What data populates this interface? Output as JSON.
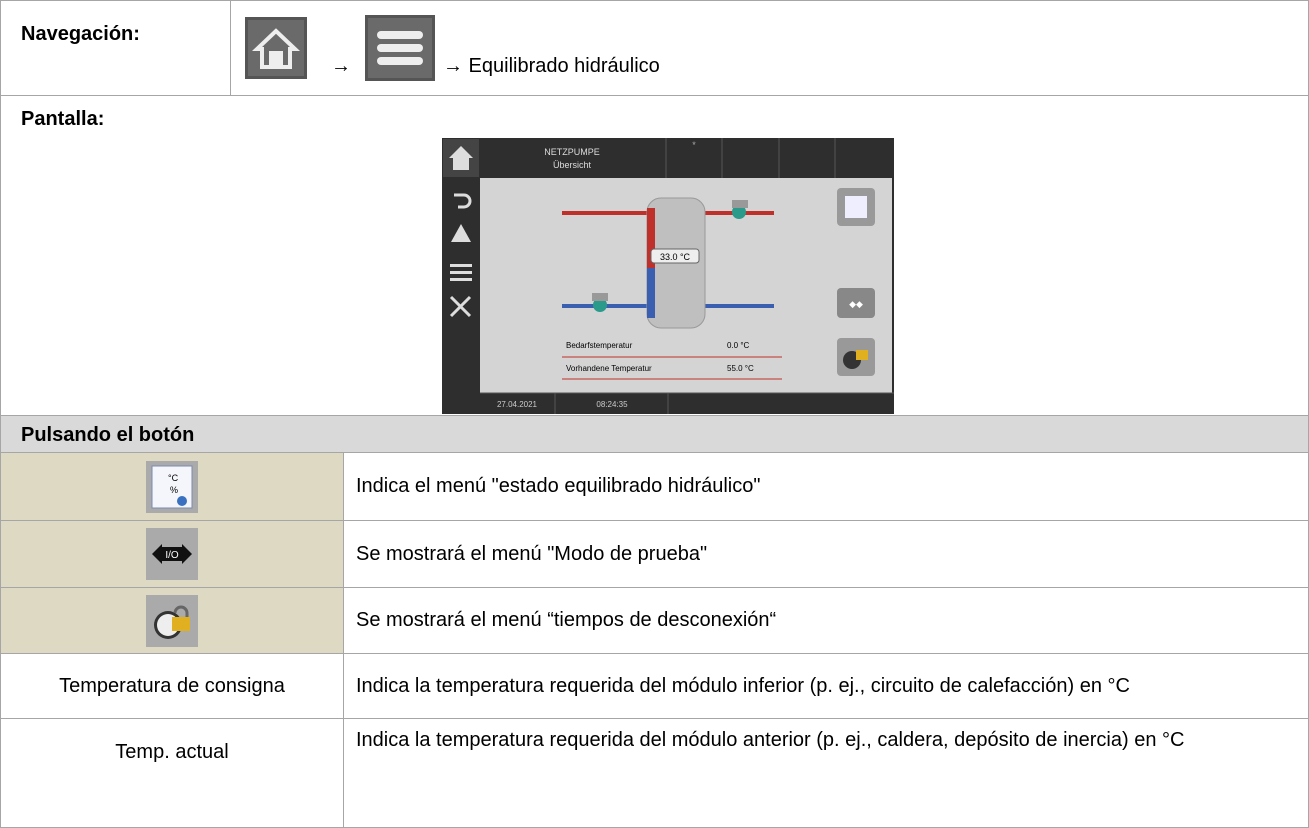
{
  "navigation": {
    "label": "Navegación:",
    "steps": [
      "→",
      "→ Equilibrado hidráulico"
    ]
  },
  "screen": {
    "label": "Pantalla:",
    "title": "NETZPUMPE",
    "subtitle": "Übersicht",
    "marker": "*",
    "tank_temp": "33.0 °C",
    "rows": [
      {
        "name": "Bedarfstemperatur",
        "value": "0.0 °C"
      },
      {
        "name": "Vorhandene Temperatur",
        "value": "55.0 °C"
      }
    ],
    "date": "27.04.2021",
    "time": "08:24:35"
  },
  "buttons": {
    "header": "Pulsando el botón",
    "rows": [
      {
        "text": "Indica el menú \"estado equilibrado hidráulico\""
      },
      {
        "text": "Se mostrará el menú \"Modo de prueba\""
      },
      {
        "text": "Se mostrará el menú “tiempos de desconexión“"
      },
      {
        "label": "Temperatura de consigna",
        "text": "Indica la temperatura requerida del módulo inferior (p. ej., circuito de calefacción) en °C"
      },
      {
        "label": "Temp. actual",
        "text": "Indica la temperatura requerida del módulo anterior (p. ej., caldera, depósito de inercia) en °C"
      }
    ]
  }
}
